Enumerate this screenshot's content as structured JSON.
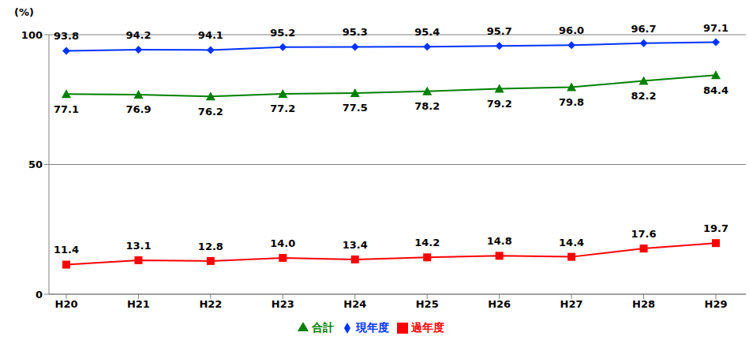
{
  "chart_data": {
    "type": "line",
    "y_label": "(%)",
    "categories": [
      "H20",
      "H21",
      "H22",
      "H23",
      "H24",
      "H25",
      "H26",
      "H27",
      "H28",
      "H29"
    ],
    "series": [
      {
        "name": "現年度",
        "color": "#0033ff",
        "marker": "diamond",
        "values": [
          93.8,
          94.2,
          94.1,
          95.2,
          95.3,
          95.4,
          95.7,
          96.0,
          96.7,
          97.1
        ],
        "value_labels": [
          "93.8",
          "94.2",
          "94.1",
          "95.2",
          "95.3",
          "95.4",
          "95.7",
          "96.0",
          "96.7",
          "97.1"
        ]
      },
      {
        "name": "過年度",
        "color": "#ff0000",
        "marker": "square",
        "values": [
          11.4,
          13.1,
          12.8,
          14.0,
          13.4,
          14.2,
          14.8,
          14.4,
          17.6,
          19.7
        ],
        "value_labels": [
          "11.4",
          "13.1",
          "12.8",
          "14.0",
          "13.4",
          "14.2",
          "14.8",
          "14.4",
          "17.6",
          "19.7"
        ]
      },
      {
        "name": "合計",
        "color": "#008000",
        "marker": "triangle",
        "values": [
          77.1,
          76.9,
          76.2,
          77.2,
          77.5,
          78.2,
          79.2,
          79.8,
          82.2,
          84.4
        ],
        "value_labels": [
          "77.1",
          "76.9",
          "76.2",
          "77.2",
          "77.5",
          "78.2",
          "79.2",
          "79.8",
          "82.2",
          "84.4"
        ]
      }
    ],
    "ylim": [
      0,
      100
    ],
    "yticks": [
      0,
      50,
      100
    ],
    "grid": true,
    "data_labels": true,
    "legend": "bottom"
  }
}
